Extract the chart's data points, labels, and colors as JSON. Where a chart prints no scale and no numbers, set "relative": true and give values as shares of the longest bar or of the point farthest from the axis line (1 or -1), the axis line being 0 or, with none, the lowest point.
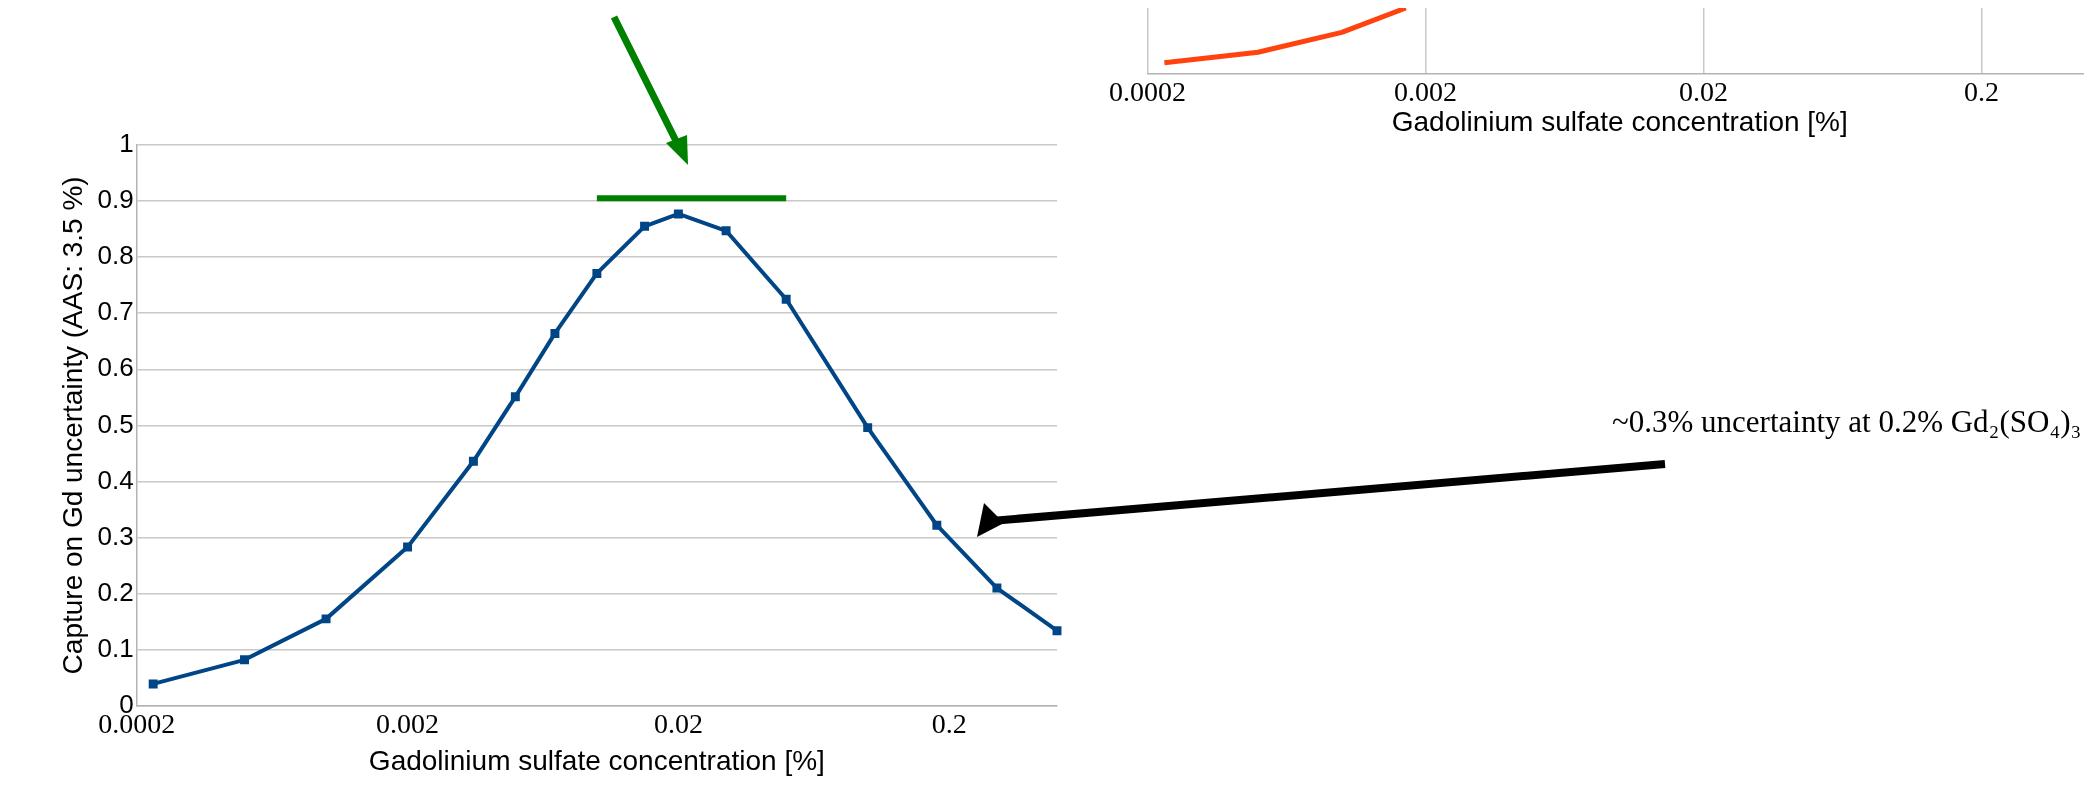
{
  "chart_data": [
    {
      "type": "line",
      "xlabel": "Gadolinium sulfate concentration [%]",
      "ylabel": "Capture on Gd uncertainty (AAS: 3.5 %)",
      "log": "x",
      "xlim": [
        0.0002,
        0.5
      ],
      "xticks": [
        0.0002,
        0.002,
        0.02,
        0.2
      ],
      "ylim": [
        0,
        1
      ],
      "yticks": [
        0,
        0.1,
        0.2,
        0.3,
        0.4,
        0.5,
        0.6,
        0.7,
        0.8,
        0.9,
        1
      ],
      "grid": "y",
      "marker": "square",
      "annotations": [
        "~0.3% uncertainty at 0.2% Gd₂(SO₄)₃"
      ],
      "series": [
        {
          "color": "#004586",
          "x": [
            0.00023,
            0.0005,
            0.001,
            0.002,
            0.0035,
            0.005,
            0.007,
            0.01,
            0.015,
            0.02,
            0.03,
            0.05,
            0.1,
            0.18,
            0.3,
            0.5
          ],
          "values": [
            0.039,
            0.082,
            0.155,
            0.283,
            0.436,
            0.551,
            0.664,
            0.771,
            0.855,
            0.877,
            0.847,
            0.725,
            0.496,
            0.322,
            0.21,
            0.134
          ]
        },
        {
          "color": "#008000",
          "marker": "none",
          "x": [
            0.01,
            0.05
          ],
          "values": [
            0.905,
            0.905
          ]
        }
      ]
    },
    {
      "type": "line",
      "xlabel": "Gadolinium sulfate concentration [%]",
      "log": "x",
      "xlim": [
        0.0002,
        0.5
      ],
      "xticks": [
        0.0002,
        0.002,
        0.02,
        0.2
      ],
      "relative": true,
      "grid": "x",
      "tick_labels": "x",
      "marker": "none",
      "series": [
        {
          "color": "#ff420e",
          "x": [
            0.00023,
            0.0005,
            0.001,
            0.0017
          ],
          "values": [
            0.17,
            0.33,
            0.63,
            1
          ]
        }
      ]
    }
  ]
}
